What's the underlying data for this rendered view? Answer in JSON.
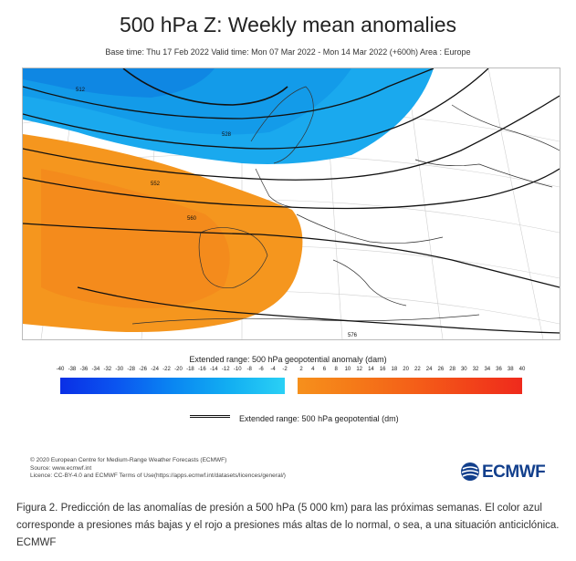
{
  "title": "500 hPa Z: Weekly mean anomalies",
  "subtitle": "Base time: Thu 17 Feb 2022 Valid time: Mon 07 Mar 2022 - Mon 14 Mar 2022 (+600h) Area : Europe",
  "colorbar": {
    "title": "Extended range: 500 hPa geopotential anomaly (dam)",
    "negative_ticks": [
      "-40",
      "-38",
      "-36",
      "-34",
      "-32",
      "-30",
      "-28",
      "-26",
      "-24",
      "-22",
      "-20",
      "-18",
      "-16",
      "-14",
      "-12",
      "-10",
      "-8",
      "-6",
      "-4",
      "-2"
    ],
    "positive_ticks": [
      "2",
      "4",
      "6",
      "8",
      "10",
      "12",
      "14",
      "16",
      "18",
      "20",
      "22",
      "24",
      "26",
      "28",
      "30",
      "32",
      "34",
      "36",
      "38",
      "40"
    ],
    "negative_colors": [
      "#0a2fe6",
      "#2ad0f5"
    ],
    "positive_colors": [
      "#f6901c",
      "#ef2a1c"
    ]
  },
  "legend": {
    "line_label": "Extended range: 500 hPa geopotential (dm)"
  },
  "map": {
    "contour_labels": [
      "512",
      "528",
      "552",
      "560",
      "576"
    ],
    "anomaly_colors": {
      "negative": "#22b4ef",
      "positive": "#f5961e"
    }
  },
  "credits": {
    "line1": "© 2020 European Centre for Medium-Range Weather Forecasts (ECMWF)",
    "line2": "Source: www.ecmwf.int",
    "line3": "Licence: CC-BY-4.0 and ECMWF Terms of Use(https://apps.ecmwf.int/datasets/licences/general/)"
  },
  "logo": {
    "text": "ECMWF"
  },
  "caption": "Figura 2. Predicción de las anomalías de presión a 500 hPa (5 000 km) para las próximas semanas. El color azul corresponde a presiones más bajas y el rojo a presiones más altas de lo normal, o sea, a una situación anticiclónica. ECMWF"
}
